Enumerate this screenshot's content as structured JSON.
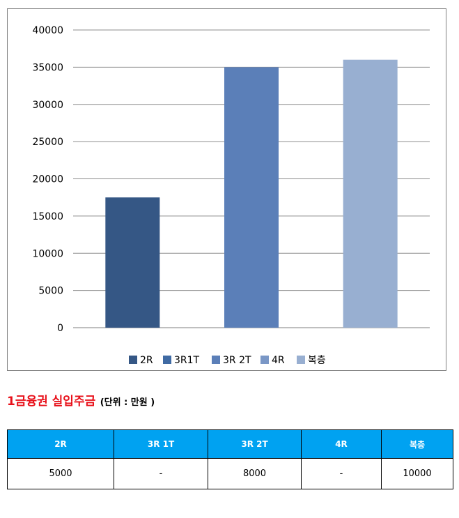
{
  "chart_data": {
    "type": "bar",
    "categories": [
      "2R",
      "3R1T",
      "3R 2T",
      "4R",
      "복층"
    ],
    "values": [
      17500,
      null,
      35000,
      null,
      36000
    ],
    "ylim": [
      0,
      40000
    ],
    "yticks": [
      0,
      5000,
      10000,
      15000,
      20000,
      25000,
      30000,
      35000,
      40000
    ],
    "grid": true,
    "legend_position": "bottom",
    "colors": {
      "2R": "#355785",
      "3R1T": "#3f6aa3",
      "3R 2T": "#5b7fb8",
      "4R": "#7a97c6",
      "복층": "#98afd1",
      "grid": "#8c8c8c",
      "axis": "#7f7f7f"
    }
  },
  "section": {
    "title": "1금융권 실입주금",
    "unit": "(단위 : 만원 )"
  },
  "table": {
    "headers": [
      "2R",
      "3R 1T",
      "3R 2T",
      "4R",
      "복층"
    ],
    "values": [
      "5000",
      "-",
      "8000",
      "-",
      "10000"
    ],
    "header_color": "#00a2f1"
  }
}
